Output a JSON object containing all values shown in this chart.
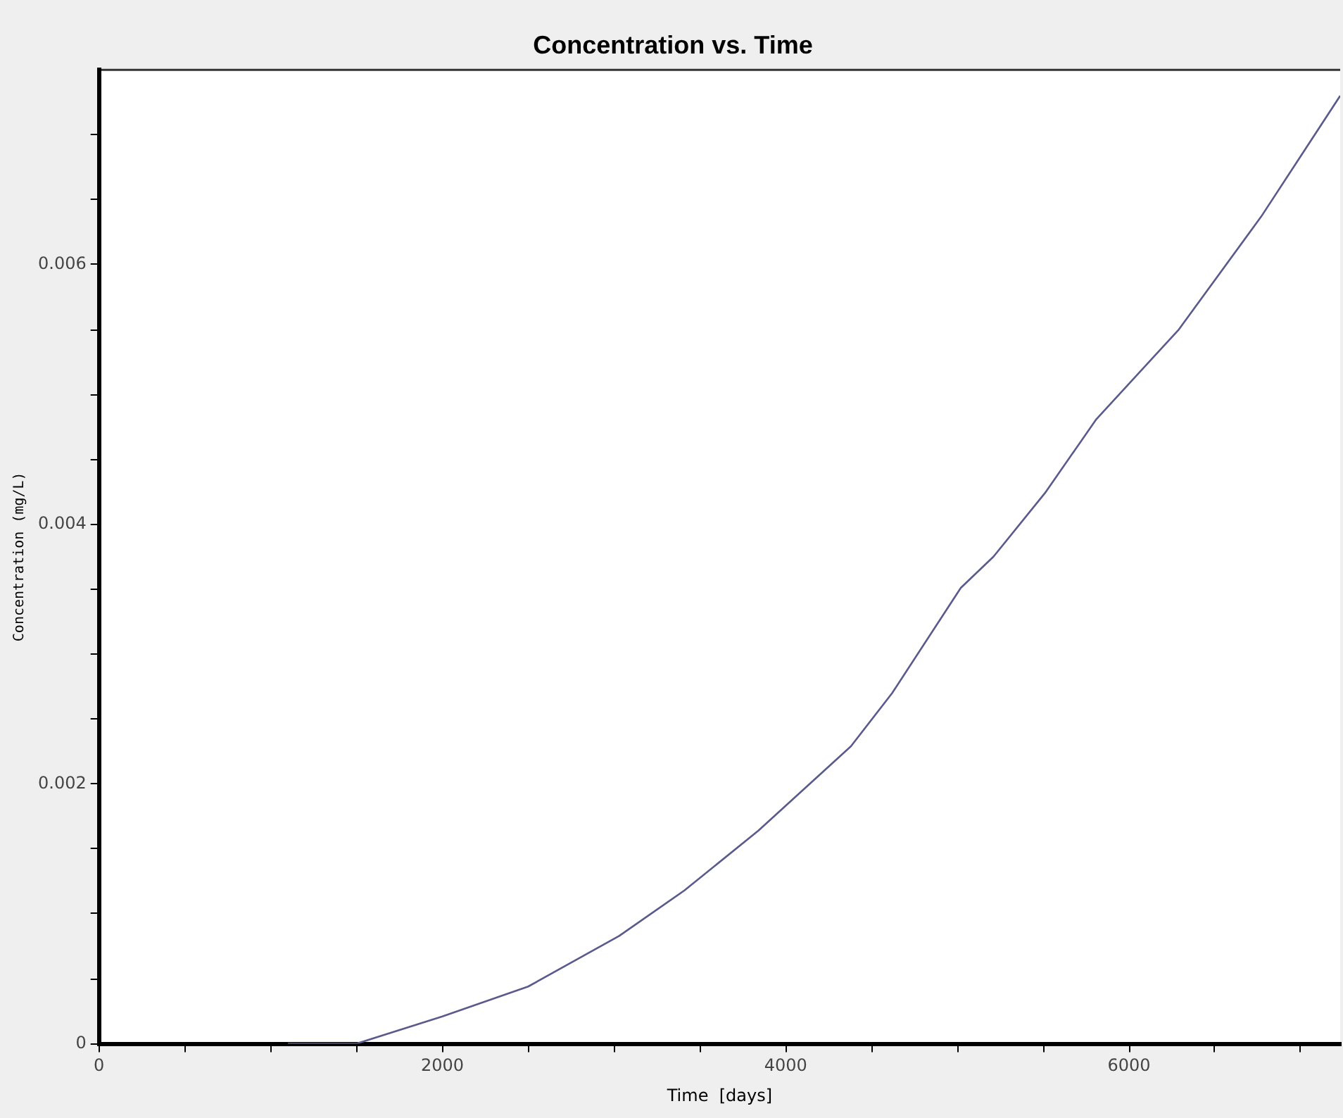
{
  "chart_data": {
    "type": "line",
    "title": "Concentration vs. Time",
    "xlabel": "Time  [days]",
    "ylabel": "Concentration (mg/L)",
    "xlim": [
      0,
      7230
    ],
    "ylim": [
      0,
      0.0075
    ],
    "xticks": [
      0,
      {
        "value": 500,
        "label": null
      },
      {
        "value": 1000,
        "label": null
      },
      {
        "value": 1500,
        "label": null
      },
      2000,
      {
        "value": 2500,
        "label": null
      },
      {
        "value": 3000,
        "label": null
      },
      {
        "value": 3500,
        "label": null
      },
      4000,
      {
        "value": 4500,
        "label": null
      },
      {
        "value": 5000,
        "label": null
      },
      {
        "value": 5500,
        "label": null
      },
      6000,
      {
        "value": 6500,
        "label": null
      },
      {
        "value": 7000,
        "label": null
      }
    ],
    "yticks": [
      0,
      {
        "value": 0.0005,
        "label": null
      },
      {
        "value": 0.001,
        "label": null
      },
      {
        "value": 0.0015,
        "label": null
      },
      0.002,
      {
        "value": 0.0025,
        "label": null
      },
      {
        "value": 0.003,
        "label": null
      },
      {
        "value": 0.0035,
        "label": null
      },
      0.004,
      {
        "value": 0.0045,
        "label": null
      },
      {
        "value": 0.005,
        "label": null
      },
      {
        "value": 0.0055,
        "label": null
      },
      0.006,
      {
        "value": 0.0065,
        "label": null
      },
      {
        "value": 0.007,
        "label": null
      }
    ],
    "grid": false,
    "legend": false,
    "marker": "none",
    "line_style": "solid",
    "series": [
      {
        "color": "#5a5a8c",
        "x": [
          1100,
          1500,
          2000,
          2500,
          3030,
          3410,
          3840,
          4380,
          4620,
          5020,
          5210,
          5510,
          5810,
          6290,
          6770,
          7230
        ],
        "values": [
          0,
          0,
          0.00021,
          0.00044,
          0.00083,
          0.00118,
          0.00164,
          0.00229,
          0.0027,
          0.00351,
          0.00375,
          0.00424,
          0.00481,
          0.0055,
          0.00637,
          0.0073
        ]
      }
    ]
  }
}
